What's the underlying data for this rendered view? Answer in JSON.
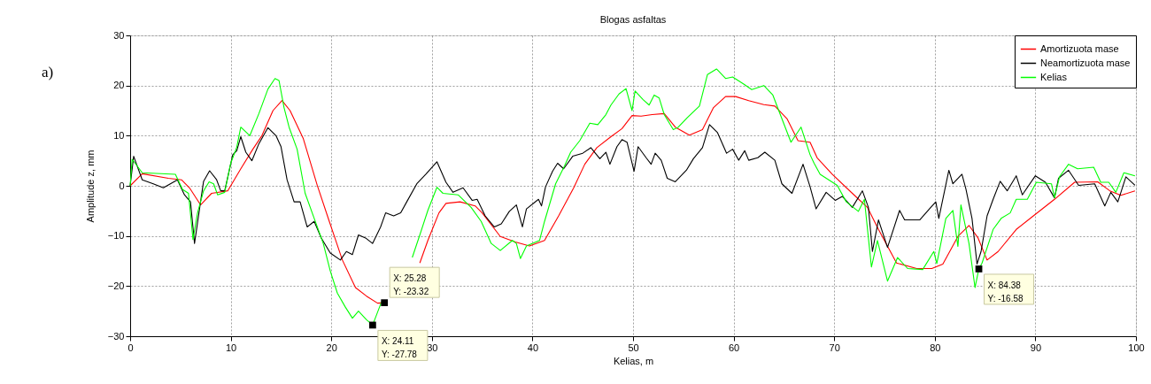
{
  "chart_data": {
    "type": "line",
    "title": "Blogas asfaltas",
    "xlabel": "Kelias, m",
    "ylabel": "Amplitude z, mm",
    "xlim": [
      0,
      100
    ],
    "xticks": [
      0,
      10,
      20,
      30,
      40,
      50,
      60,
      70,
      80,
      90,
      100
    ],
    "ylim": [
      -30,
      30
    ],
    "yticks": [
      -30,
      -20,
      -10,
      0,
      10,
      20,
      30
    ],
    "grid": true,
    "legend": "top right",
    "marker": "none",
    "line_style": "solid",
    "annotations": [
      "a)",
      {
        "text": "X: 25.28\nY: -23.32",
        "x": 25.28,
        "y": -23.32
      },
      {
        "text": "X: 24.11\nY: -27.78",
        "x": 24.11,
        "y": -27.78
      },
      {
        "text": "X: 84.38\nY: -16.58",
        "x": 84.38,
        "y": -16.58
      }
    ],
    "series": [
      {
        "name": "Amortizuota mase",
        "color": "#ff0000",
        "x": [
          0,
          1.2,
          3.8,
          5.1,
          5.9,
          7,
          8.1,
          9.7,
          11,
          12.2,
          13.1,
          14.2,
          15.1,
          15.9,
          17.2,
          18.6,
          19.8,
          21.1,
          22.4,
          23.5,
          24.6,
          25.28,
          26.5,
          27.5,
          28.8,
          29.6,
          30.7,
          31.4,
          32.8,
          34.3,
          35,
          36.8,
          38.3,
          39.7,
          41.2,
          42.6,
          44.1,
          45.2,
          46.4,
          47.8,
          48.9,
          49.9,
          50.8,
          51.9,
          53.1,
          54.2,
          55.6,
          56.9,
          58,
          59.2,
          60.2,
          61.5,
          63,
          64.1,
          65.3,
          66.4,
          67.6,
          68.3,
          69.8,
          71.8,
          73.3,
          74.4,
          76.2,
          78.2,
          79.7,
          80.8,
          82.3,
          83.4,
          84.3,
          85.2,
          86.3,
          88.1,
          89.8,
          91.9,
          93.9,
          96.2,
          97.4,
          98.5,
          99.9
        ],
        "values": [
          0,
          2.4,
          1.5,
          1.2,
          -0.4,
          -3.8,
          -1.5,
          -1,
          3.4,
          7.3,
          10,
          15,
          17,
          15,
          9.5,
          0.1,
          -7.1,
          -14.8,
          -20.3,
          -22,
          -23.4,
          -23.32,
          null,
          null,
          -15.4,
          -10.9,
          -5.4,
          -3.5,
          -3.2,
          -4,
          -5.4,
          -10.1,
          -11.2,
          -12,
          -10.9,
          -6,
          -0.4,
          4.3,
          7.6,
          9.8,
          11.4,
          14,
          13.9,
          14.2,
          14.4,
          11.7,
          10.1,
          11.2,
          15.6,
          17.8,
          17.8,
          17,
          16.2,
          15.9,
          13.4,
          9,
          8.7,
          5.6,
          2.3,
          -1.5,
          -4.3,
          -8.7,
          -15.4,
          -16.5,
          -16.5,
          -15.6,
          -10.1,
          -7.9,
          -10.4,
          -14.8,
          -13.1,
          -8.7,
          -6,
          -2.7,
          0.7,
          0.8,
          -1,
          -1.9,
          -1
        ]
      },
      {
        "name": "Neamortizuota mase",
        "color": "#000000",
        "x": [
          0,
          0.35,
          1.2,
          2.3,
          3.3,
          4.7,
          5.4,
          6,
          6.4,
          7,
          7.3,
          7.9,
          8.6,
          9,
          9.4,
          10.2,
          10.6,
          11,
          11.5,
          12.1,
          12.8,
          13.7,
          14.5,
          15,
          15.6,
          16.3,
          16.9,
          17.6,
          18.3,
          19,
          19.9,
          20.9,
          21.5,
          22.1,
          22.7,
          23.4,
          24.1,
          24.9,
          25.4,
          26.2,
          26.9,
          27.5,
          28.5,
          29.4,
          30.5,
          31.4,
          32.1,
          33.1,
          34,
          34.5,
          35.3,
          36.2,
          36.9,
          37.7,
          38.4,
          39,
          39.4,
          40.6,
          40.9,
          41.3,
          42,
          42.5,
          43.1,
          44,
          45,
          45.8,
          46.7,
          47.3,
          47.7,
          48.4,
          48.9,
          49.4,
          50.1,
          50.5,
          51.3,
          51.8,
          52.2,
          52.8,
          53.4,
          54.2,
          55.3,
          56,
          56.9,
          57.6,
          58.4,
          59.3,
          59.9,
          60.5,
          61.1,
          61.5,
          62.4,
          63.1,
          64.1,
          64.8,
          65.8,
          66.9,
          67.6,
          68.2,
          69.2,
          70.1,
          70.8,
          71.8,
          72.8,
          73.4,
          73.8,
          74.4,
          75.3,
          76.5,
          77,
          78.5,
          79.6,
          80.1,
          80.4,
          81.4,
          81.8,
          82.7,
          83.1,
          83.7,
          84.2,
          84.6,
          85.2,
          85.8,
          86.5,
          87.2,
          88.1,
          88.7,
          90,
          91,
          91.9,
          92.3,
          93.3,
          94.3,
          95.9,
          96.9,
          97.5,
          98.2,
          99,
          99.9
        ],
        "values": [
          0,
          5.9,
          1.2,
          0.4,
          -0.4,
          1.2,
          -1.8,
          -3.2,
          -11.5,
          -3.2,
          0.9,
          3,
          1.2,
          -1,
          -1,
          6.2,
          7,
          9.8,
          6.7,
          5,
          8.4,
          11.6,
          10,
          7.8,
          1.2,
          -3.2,
          -3.2,
          -8.2,
          -7.1,
          -10.4,
          -13.4,
          -14.8,
          -13.1,
          -13.7,
          -9.8,
          -10.4,
          -11.5,
          -8.2,
          -5.4,
          -6,
          -5.4,
          -3.2,
          0.4,
          2.3,
          4.8,
          0.7,
          -1.3,
          -0.4,
          -2.9,
          -2.7,
          -6,
          -8.2,
          -7.6,
          -5.1,
          -3.8,
          -8.2,
          -4.6,
          -2.7,
          -4,
          -0.2,
          2.9,
          4.5,
          3.4,
          5.9,
          6.5,
          7.6,
          5.4,
          6.7,
          4.3,
          7.8,
          9.2,
          8.7,
          2.9,
          7.8,
          5.6,
          4.3,
          6.5,
          5.1,
          1.5,
          0.8,
          3.1,
          5.4,
          7.6,
          12.2,
          10.6,
          6.5,
          7.3,
          5.1,
          7,
          5.1,
          5.6,
          6.7,
          5.1,
          0.4,
          -1.5,
          4.3,
          -0.2,
          -4.6,
          -1.3,
          -2.9,
          -2.1,
          -4.3,
          -1,
          -4.3,
          -13.1,
          -6.8,
          -12.3,
          -4.9,
          -6.8,
          -6.8,
          -4.3,
          -3.2,
          -6.5,
          3.1,
          0.4,
          2.3,
          -0.7,
          -6.5,
          -15.6,
          -13.1,
          -6,
          -2.7,
          0.9,
          -1,
          2,
          -1.8,
          2,
          0.7,
          -2.4,
          1.5,
          3.1,
          0.1,
          0.4,
          -4,
          -1.3,
          -3.2,
          1.8,
          0.1
        ]
      },
      {
        "name": "Kelias",
        "color": "#00ff00",
        "x": [
          0,
          0.2,
          1.2,
          4.5,
          5.2,
          5.8,
          6.25,
          6.7,
          7.3,
          7.85,
          8.3,
          8.7,
          9.4,
          10,
          10.6,
          11,
          11.9,
          12.8,
          13.7,
          14.4,
          14.8,
          15.3,
          15.8,
          16.6,
          17.4,
          18.3,
          19.2,
          19.9,
          20.6,
          21.4,
          22.1,
          22.7,
          23.5,
          24.11,
          25,
          26,
          27,
          28.05,
          28.8,
          29.6,
          30.5,
          31.1,
          32.6,
          33.9,
          34.9,
          35.9,
          36.8,
          38,
          38.4,
          38.8,
          39.4,
          40.7,
          41.2,
          42.3,
          43.2,
          43.8,
          44.7,
          45.7,
          46.5,
          47.3,
          47.8,
          48.6,
          49.3,
          49.9,
          50.2,
          51,
          51.6,
          52.1,
          52.6,
          53.1,
          54,
          54.5,
          55.4,
          56.6,
          57.4,
          58.3,
          59.2,
          59.9,
          61,
          61.8,
          63,
          63.9,
          64.7,
          65.7,
          66.7,
          67.6,
          68,
          68.6,
          70.3,
          71.2,
          72.4,
          73,
          73.7,
          74.3,
          75.3,
          76.3,
          77.3,
          78.8,
          79.9,
          80.2,
          81.1,
          81.8,
          82.3,
          82.6,
          83.4,
          84,
          84.38,
          84.7,
          85.8,
          86.6,
          87.5,
          88.1,
          89.2,
          90.1,
          91.6,
          91.9,
          92.4,
          93.3,
          94.2,
          95.8,
          96.5,
          97.3,
          98,
          98.8,
          99.9
        ],
        "values": [
          0,
          5.3,
          2.6,
          2.3,
          -0.7,
          -1.5,
          -10.7,
          -5.4,
          -1,
          0.8,
          0.4,
          -1.8,
          -1.3,
          4.5,
          7.7,
          11.7,
          10,
          14.4,
          19.3,
          21.4,
          21,
          15.6,
          11.7,
          7.3,
          -1.5,
          -6.5,
          -11.5,
          -17,
          -21.4,
          -24.2,
          -26.4,
          -25,
          -26.7,
          -27.78,
          -23.1,
          null,
          null,
          -14.3,
          -9.8,
          -4.9,
          -0.3,
          -1.5,
          -1.8,
          -4.3,
          -7.1,
          -11.5,
          -12.9,
          -10.9,
          -11.5,
          -14.5,
          -12,
          -10.9,
          -7.1,
          0.4,
          4,
          6.7,
          9,
          12.5,
          12.2,
          14.2,
          16.1,
          18.3,
          19.4,
          15,
          18.9,
          17.2,
          16.1,
          18.1,
          17.5,
          14.2,
          11.2,
          11.7,
          13.6,
          15.9,
          22.2,
          23.3,
          21.4,
          21.7,
          20.3,
          19.2,
          20,
          18.1,
          13.9,
          8.7,
          11.7,
          6.2,
          4.5,
          2.3,
          0.1,
          -3.2,
          -5.1,
          -2.7,
          -16.2,
          -10.9,
          -19,
          -14.3,
          -16.5,
          -16.7,
          -13.1,
          -15.5,
          -6.5,
          -4.9,
          -12.1,
          -3.8,
          -11.5,
          -20.3,
          -16.58,
          -15.4,
          -8.7,
          -6.5,
          -5.4,
          -2.7,
          -2.7,
          0.7,
          0.4,
          -2.4,
          1.8,
          4.3,
          3.4,
          3.7,
          0.7,
          0.7,
          -1.3,
          2.6,
          2
        ]
      }
    ]
  }
}
